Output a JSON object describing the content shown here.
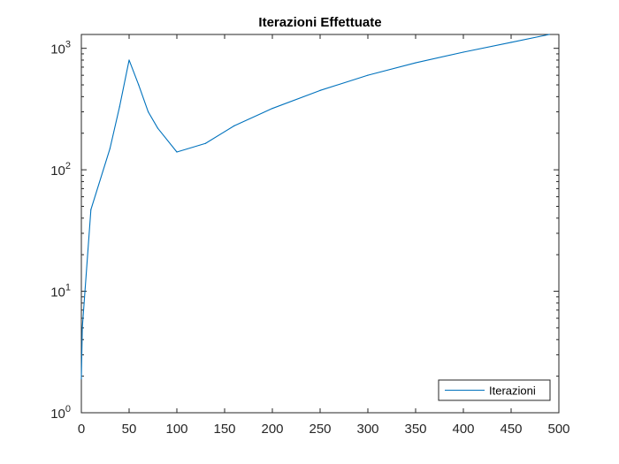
{
  "chart_data": {
    "type": "line",
    "title": "Iterazioni   Effettuate",
    "xlabel": "",
    "ylabel": "",
    "xlim": [
      0,
      500
    ],
    "ylim": [
      1,
      1300
    ],
    "yscale": "log",
    "grid": false,
    "legend_position": "bottom-right",
    "x_ticks": [
      0,
      50,
      100,
      150,
      200,
      250,
      300,
      350,
      400,
      450,
      500
    ],
    "y_ticks": [
      {
        "value": 1,
        "base": "10",
        "exp": "0"
      },
      {
        "value": 10,
        "base": "10",
        "exp": "1"
      },
      {
        "value": 100,
        "base": "10",
        "exp": "2"
      },
      {
        "value": 1000,
        "base": "10",
        "exp": "3"
      }
    ],
    "series": [
      {
        "name": "Iterazioni",
        "color": "#0072BD",
        "x": [
          0,
          1,
          10,
          30,
          40,
          50,
          60,
          70,
          80,
          100,
          130,
          160,
          200,
          250,
          300,
          350,
          400,
          450,
          490
        ],
        "y": [
          1.9,
          5,
          47,
          150,
          330,
          800,
          500,
          300,
          220,
          140,
          165,
          230,
          320,
          450,
          600,
          760,
          930,
          1120,
          1300
        ]
      }
    ]
  }
}
